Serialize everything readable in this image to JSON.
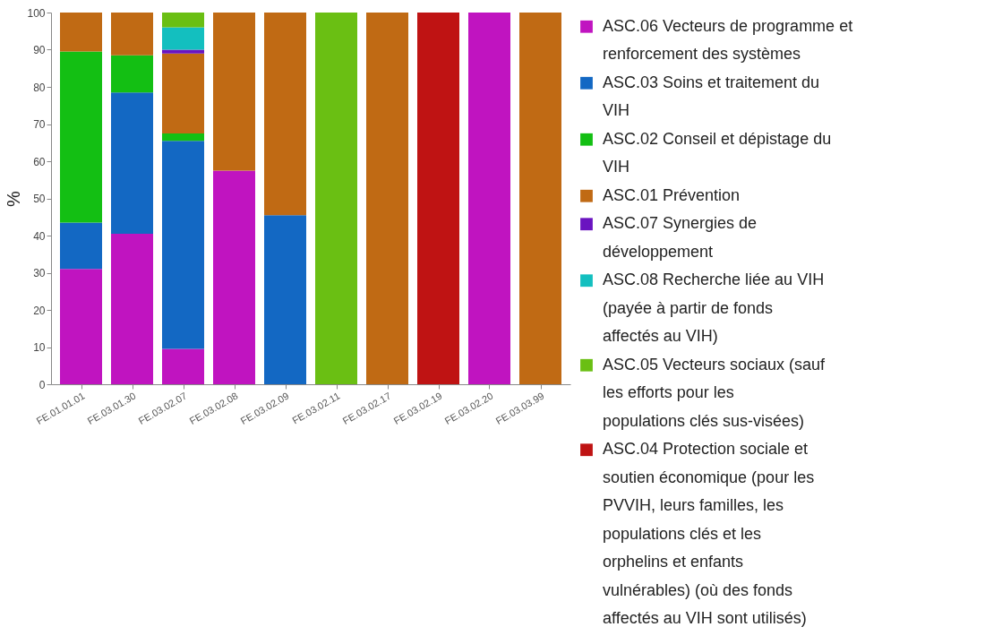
{
  "chart_data": {
    "type": "bar",
    "stacked": true,
    "ylabel": "%",
    "ylim": [
      0,
      100
    ],
    "yticks": [
      0,
      10,
      20,
      30,
      40,
      50,
      60,
      70,
      80,
      90,
      100
    ],
    "grid": false,
    "legend": "right",
    "categories": [
      "FE.01.01.01",
      "FE.03.01.30",
      "FE.03.02.07",
      "FE.03.02.08",
      "FE.03.02.09",
      "FE.03.02.11",
      "FE.03.02.17",
      "FE.03.02.19",
      "FE.03.02.20",
      "FE.03.03.99"
    ],
    "series": [
      {
        "name": "ASC.06 Vecteurs de programme et renforcement des systèmes",
        "color": "#c014c0",
        "values": [
          31,
          40.5,
          9.5,
          57.5,
          null,
          null,
          null,
          null,
          100,
          null
        ]
      },
      {
        "name": "ASC.03 Soins et traitement du VIH",
        "color": "#1368c3",
        "values": [
          12.5,
          38,
          56,
          null,
          45.5,
          null,
          null,
          null,
          null,
          null
        ]
      },
      {
        "name": "ASC.02 Conseil et dépistage du VIH",
        "color": "#13bf13",
        "values": [
          46,
          10,
          2,
          null,
          null,
          null,
          null,
          null,
          null,
          null
        ]
      },
      {
        "name": "ASC.01 Prévention",
        "color": "#c06a14",
        "values": [
          10.5,
          11.5,
          21.5,
          42.5,
          54.5,
          null,
          100,
          null,
          null,
          100
        ]
      },
      {
        "name": "ASC.07 Synergies de développement",
        "color": "#6a14c0",
        "values": [
          null,
          null,
          1,
          null,
          null,
          null,
          null,
          null,
          null,
          null
        ]
      },
      {
        "name": "ASC.08 Recherche liée au VIH (payée à partir de fonds affectés au VIH)",
        "color": "#13bfbf",
        "values": [
          null,
          null,
          6,
          null,
          null,
          null,
          null,
          null,
          null,
          null
        ]
      },
      {
        "name": "ASC.05 Vecteurs sociaux (sauf les efforts pour les populations clés sus-visées)",
        "color": "#6abf13",
        "values": [
          null,
          null,
          4,
          null,
          null,
          100,
          null,
          null,
          null,
          null
        ]
      },
      {
        "name": "ASC.04 Protection sociale et soutien économique (pour les PVVIH, leurs familles, les populations clés et les orphelins et enfants vulnérables) (où des fonds affectés au VIH sont utilisés)",
        "color": "#bf1313",
        "values": [
          null,
          null,
          null,
          null,
          null,
          null,
          null,
          100,
          null,
          null
        ]
      }
    ]
  }
}
